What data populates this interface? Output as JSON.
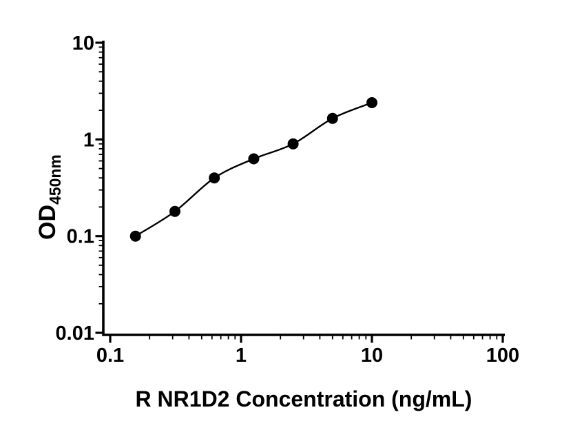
{
  "figure": {
    "background": "#ffffff",
    "ink_color": "#000000"
  },
  "chart_data": {
    "type": "scatter",
    "title": "",
    "xlabel": "R NR1D2 Concentration (ng/mL)",
    "ylabel": "OD450nm",
    "ylabel_main": "OD",
    "ylabel_sub": "450nm",
    "xscale": "log",
    "yscale": "log",
    "xlim": [
      0.1,
      100
    ],
    "ylim": [
      0.01,
      10
    ],
    "grid": false,
    "legend": false,
    "minor_ticks": true,
    "x_major_ticks": {
      "values": [
        0.1,
        1,
        10,
        100
      ],
      "labels": [
        "0.1",
        "1",
        "10",
        "100"
      ]
    },
    "y_major_ticks": {
      "values": [
        10,
        1,
        0.1,
        0.01
      ],
      "labels": [
        "10",
        "1",
        "0.1",
        "0.01"
      ]
    },
    "series": [
      {
        "marker": "circle",
        "color": "#000000",
        "fit_line": true,
        "points": [
          {
            "x": 0.156,
            "y": 0.1
          },
          {
            "x": 0.3125,
            "y": 0.18
          },
          {
            "x": 0.625,
            "y": 0.4
          },
          {
            "x": 1.25,
            "y": 0.63
          },
          {
            "x": 2.5,
            "y": 0.9
          },
          {
            "x": 5,
            "y": 1.65
          },
          {
            "x": 10,
            "y": 2.4
          }
        ]
      }
    ]
  }
}
